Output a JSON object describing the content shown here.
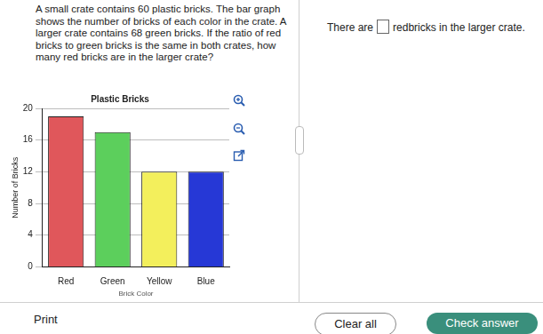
{
  "question": {
    "lines": [
      "A small crate contains 60 plastic bricks. The bar graph",
      "shows the number of bricks of each color in the crate. A",
      "larger crate contains 68 green bricks. If the ratio of red",
      "bricks to green bricks is the same in both crates, how",
      "many red bricks are in the larger crate?"
    ]
  },
  "chart_data": {
    "type": "bar",
    "title": "Plastic Bricks",
    "x_label": "Brick Color",
    "y_label": "Number of Bricks",
    "categories": [
      "Red",
      "Green",
      "Yellow",
      "Blue"
    ],
    "values": [
      19,
      17,
      12,
      12
    ],
    "colors": [
      "#e0575b",
      "#5ccf5c",
      "#f3ef5c",
      "#2638d6"
    ],
    "ylim": [
      0,
      20
    ],
    "yticks": [
      0,
      4,
      8,
      12,
      16,
      20
    ],
    "grid": true
  },
  "answer": {
    "before": "There are",
    "after": "redbricks in the larger crate."
  },
  "buttons": {
    "print": "Print",
    "clear": "Clear all",
    "check": "Check answer"
  }
}
